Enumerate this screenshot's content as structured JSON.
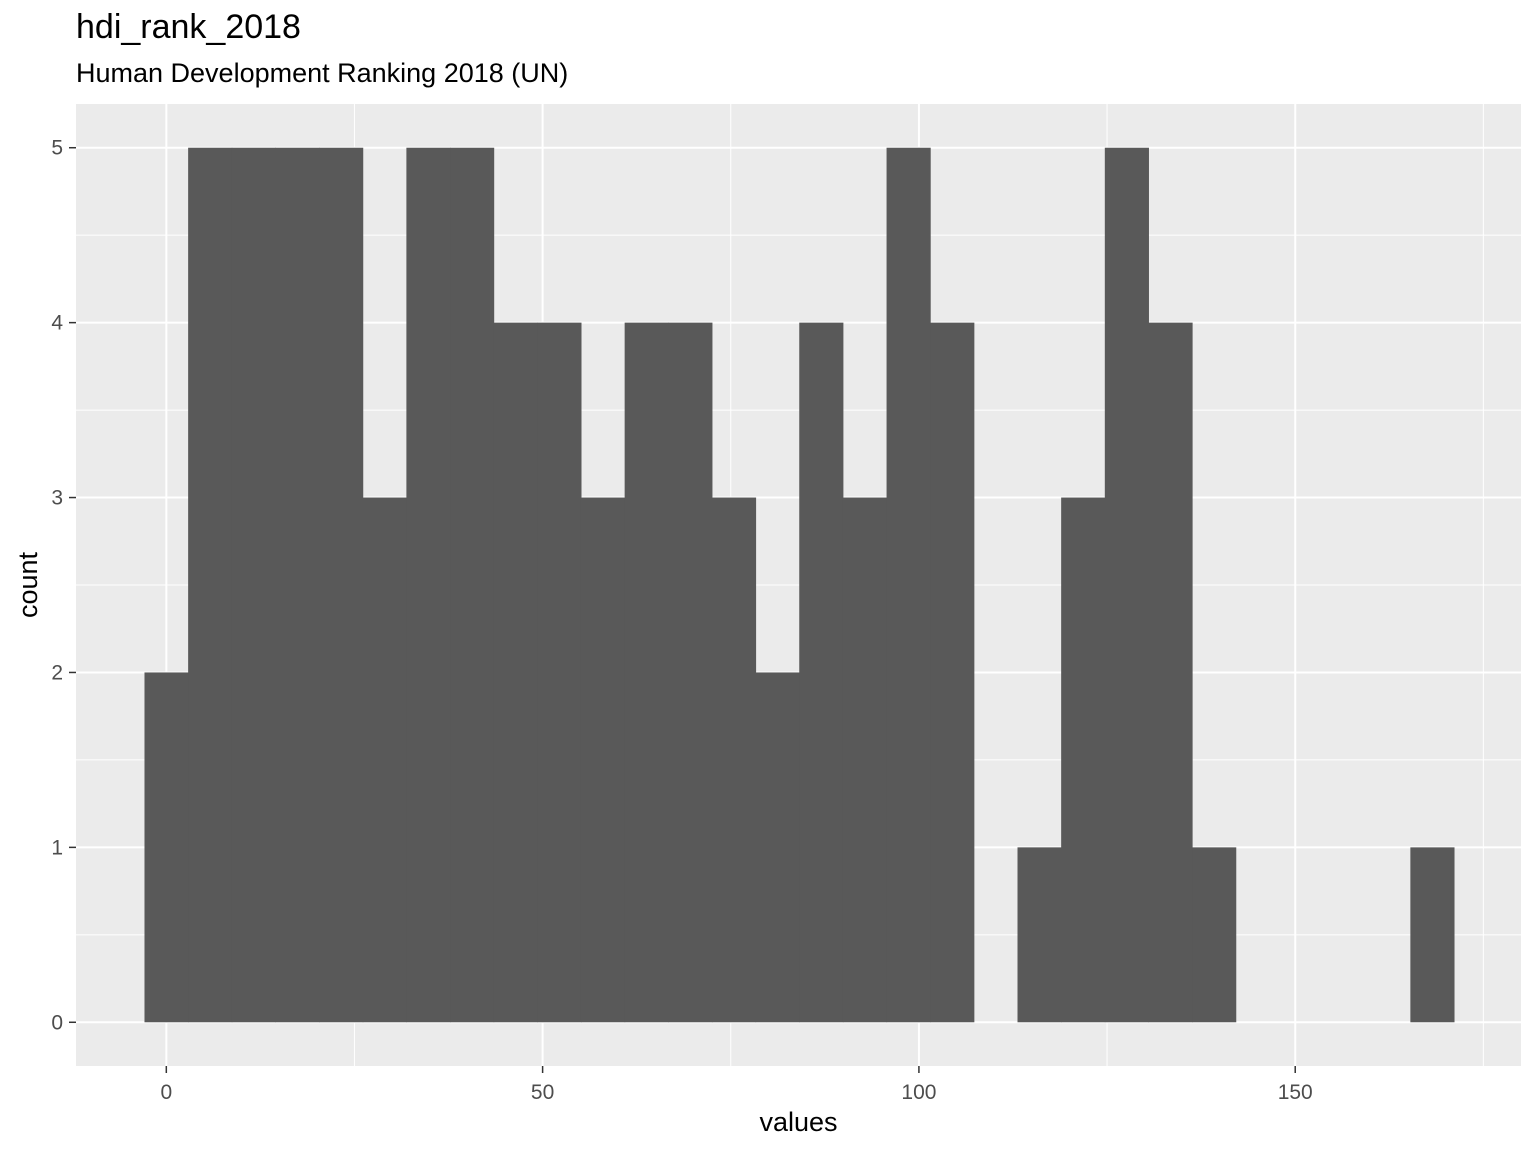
{
  "chart_data": {
    "type": "bar",
    "title": "hdi_rank_2018",
    "subtitle": "Human Development Ranking 2018 (UN)",
    "xlabel": "values",
    "ylabel": "count",
    "xlim": [
      -12,
      180
    ],
    "ylim": [
      -0.25,
      5.25
    ],
    "x_ticks": [
      0,
      50,
      100,
      150
    ],
    "x_tick_labels": [
      "0",
      "50",
      "100",
      "150"
    ],
    "y_ticks": [
      0,
      1,
      2,
      3,
      4,
      5
    ],
    "y_tick_labels": [
      "0",
      "1",
      "2",
      "3",
      "4",
      "5"
    ],
    "bin_width": 5.8,
    "bin_start": -2.9,
    "counts": [
      2,
      5,
      5,
      5,
      5,
      3,
      5,
      5,
      4,
      4,
      3,
      4,
      4,
      3,
      2,
      4,
      3,
      5,
      4,
      0,
      1,
      3,
      5,
      4,
      1,
      0,
      0,
      0,
      0,
      1
    ],
    "grid": true,
    "panel_background": "#ebebeb",
    "bar_color": "#595959",
    "grid_color": "#ffffff"
  }
}
